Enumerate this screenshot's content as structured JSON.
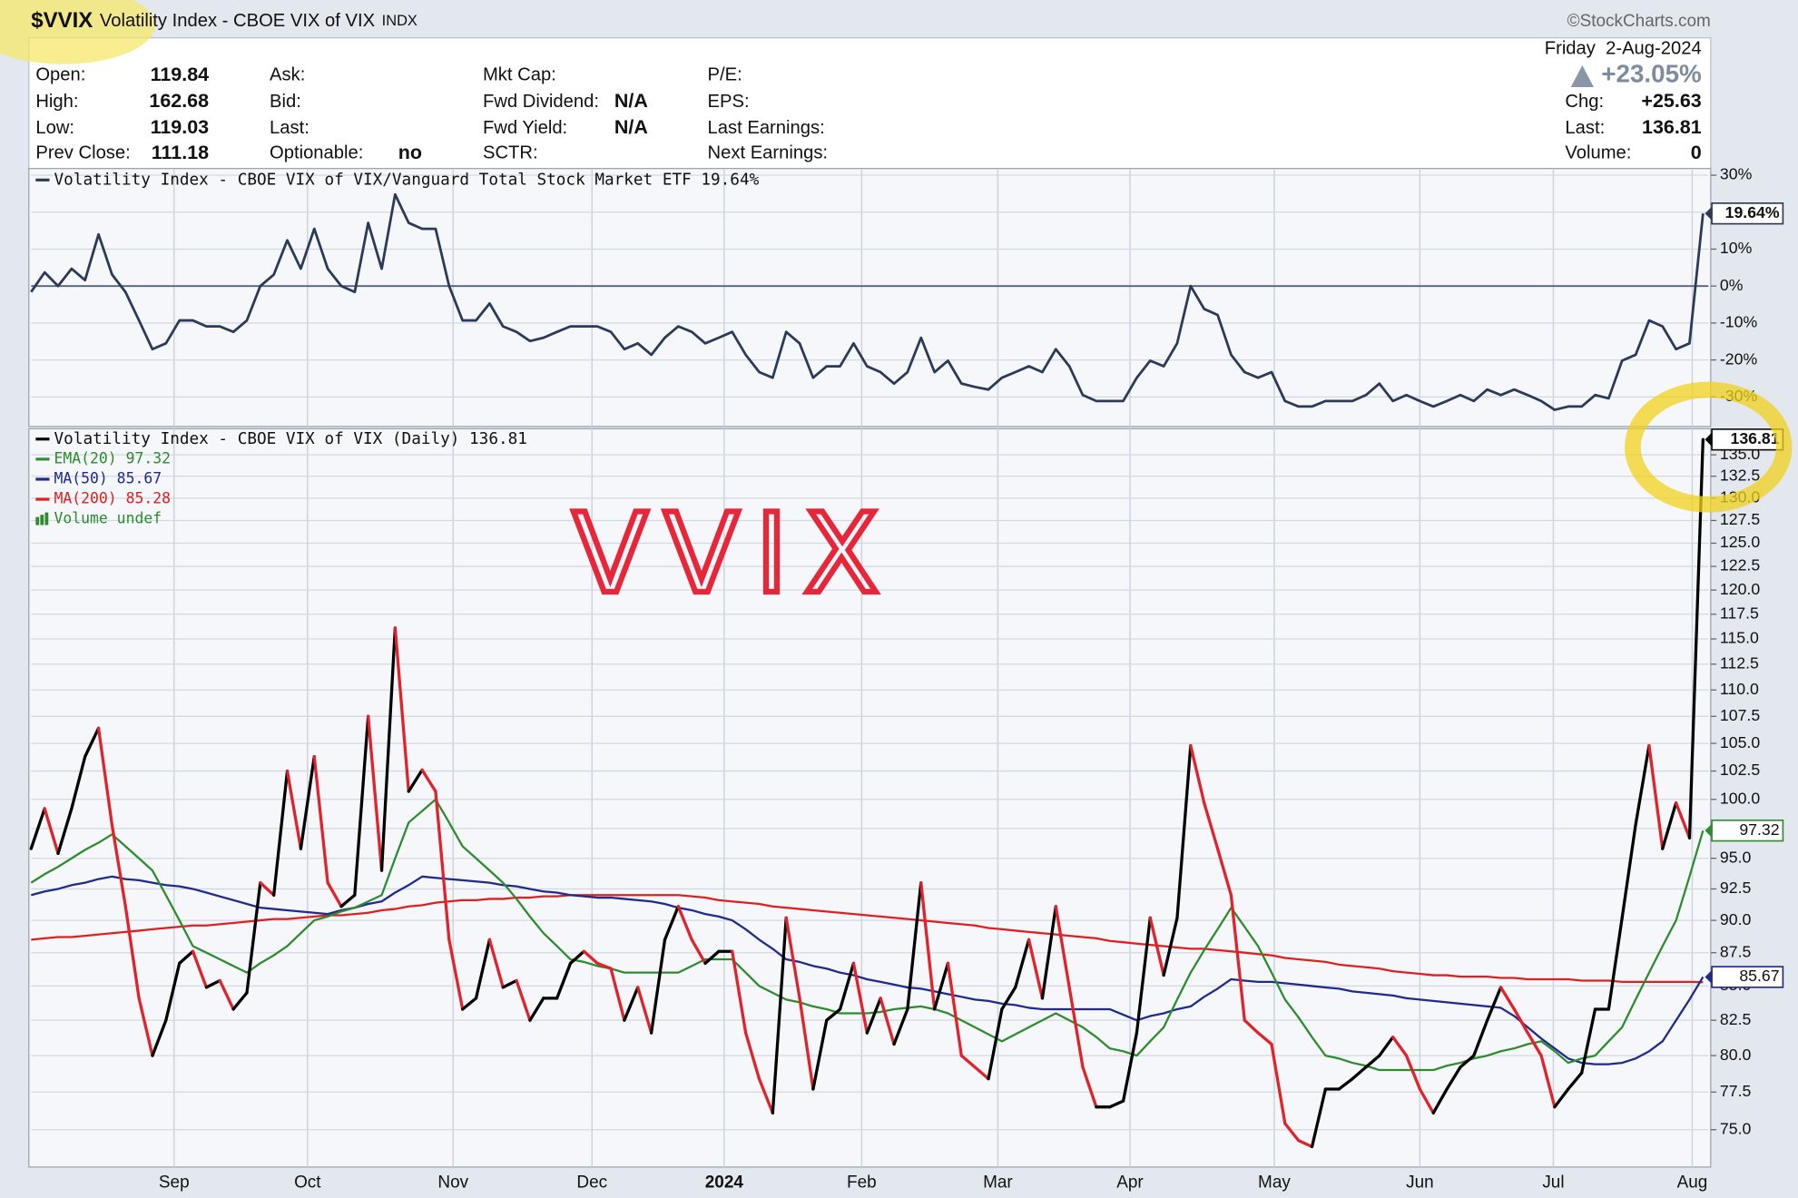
{
  "header": {
    "symbol": "$VVIX",
    "name": "Volatility Index - CBOE VIX of VIX",
    "exchange": "INDX",
    "source": "©StockCharts.com",
    "date": "Friday  2-Aug-2024",
    "change_pct": "+23.05%",
    "columns": [
      [
        {
          "label": "Open:",
          "value": 119.84
        },
        {
          "label": "High:",
          "value": 162.68
        },
        {
          "label": "Low:",
          "value": 119.03
        },
        {
          "label": "Prev Close:",
          "value": 111.18
        }
      ],
      [
        {
          "label": "Ask:"
        },
        {
          "label": "Bid:"
        },
        {
          "label": "Last:"
        },
        {
          "label": "Optionable:",
          "value": "no"
        }
      ],
      [
        {
          "label": "Mkt Cap:"
        },
        {
          "label": "Fwd Dividend:",
          "value": "N/A"
        },
        {
          "label": "Fwd Yield:",
          "value": "N/A"
        },
        {
          "label": "SCTR:"
        }
      ],
      [
        {
          "label": "P/E:"
        },
        {
          "label": "EPS:"
        },
        {
          "label": "Last Earnings:"
        },
        {
          "label": "Next Earnings:"
        }
      ]
    ],
    "right": [
      {
        "label": "Chg:",
        "value": "+25.63"
      },
      {
        "label": "Last:",
        "value": 136.81
      },
      {
        "label": "Volume:",
        "value": 0
      }
    ]
  },
  "chart_data": [
    {
      "type": "line",
      "xlim": [
        0,
        124.4
      ],
      "ylim": [
        -38,
        31.5
      ],
      "yticks": [
        {
          "value": 30,
          "label": "30%"
        },
        {
          "value": 20,
          "label": "20%"
        },
        {
          "value": 10,
          "label": "10%"
        },
        {
          "value": 0,
          "label": "0%"
        },
        {
          "value": -10,
          "label": "-10%"
        },
        {
          "value": -20,
          "label": "-20%"
        },
        {
          "value": -30,
          "label": "-30%"
        }
      ],
      "grid": true,
      "series": [
        {
          "name": "Volatility Index - CBOE VIX of VIX/Vanguard Total Stock Market ETF 19.64%",
          "color": "#2b3a58",
          "tag": true,
          "tag_label": "19.64%",
          "values": [
            -1.6,
            3.7,
            0,
            4.7,
            1.6,
            14.0,
            3.1,
            -1.6,
            -9.3,
            -17.1,
            -15.5,
            -9.3,
            -9.3,
            -10.9,
            -10.9,
            -12.4,
            -9.3,
            0,
            3.1,
            12.4,
            4.7,
            15.5,
            4.7,
            0,
            -1.6,
            17.1,
            4.7,
            24.8,
            17.1,
            15.5,
            15.5,
            0,
            -9.3,
            -9.3,
            -4.7,
            -10.9,
            -12.4,
            -14.9,
            -14.0,
            -12.4,
            -10.9,
            -10.9,
            -10.9,
            -12.4,
            -17.1,
            -15.5,
            -18.6,
            -14.0,
            -10.9,
            -12.4,
            -15.5,
            -14.0,
            -12.4,
            -18.6,
            -23.3,
            -24.8,
            -12.4,
            -15.5,
            -24.8,
            -21.7,
            -21.7,
            -15.5,
            -21.7,
            -23.3,
            -26.4,
            -23.3,
            -14.0,
            -23.3,
            -20.2,
            -26.4,
            -27.3,
            -28.0,
            -24.8,
            -23.3,
            -21.7,
            -23.3,
            -17.1,
            -21.7,
            -29.5,
            -31.1,
            -31.1,
            -31.1,
            -24.8,
            -20.2,
            -21.7,
            -15.5,
            0,
            -6.2,
            -7.8,
            -18.6,
            -23.3,
            -24.8,
            -23.3,
            -31.1,
            -32.6,
            -32.6,
            -31.1,
            -31.1,
            -31.1,
            -29.5,
            -26.4,
            -31.1,
            -29.5,
            -31.1,
            -32.6,
            -31.1,
            -29.5,
            -31.1,
            -28.0,
            -29.5,
            -28.0,
            -29.5,
            -31.1,
            -33.5,
            -32.6,
            -32.6,
            -29.5,
            -30.4,
            -20.2,
            -18.6,
            -9.3,
            -10.9,
            -17.1,
            -15.5,
            19.64
          ]
        }
      ]
    },
    {
      "type": "price",
      "annotation": "VVIX",
      "volume_legend": "Volume undef",
      "log_scale": true,
      "xlim": [
        0,
        124.4
      ],
      "xticks": [
        {
          "value": 10.6,
          "label": "Sep"
        },
        {
          "value": 20.5,
          "label": "Oct"
        },
        {
          "value": 31.3,
          "label": "Nov"
        },
        {
          "value": 41.6,
          "label": "Dec"
        },
        {
          "value": 51.4,
          "label": "2024"
        },
        {
          "value": 61.6,
          "label": "Feb"
        },
        {
          "value": 71.7,
          "label": "Mar"
        },
        {
          "value": 81.5,
          "label": "Apr"
        },
        {
          "value": 92.2,
          "label": "May"
        },
        {
          "value": 103.0,
          "label": "Jun"
        },
        {
          "value": 112.9,
          "label": "Jul"
        },
        {
          "value": 123.2,
          "label": "Aug"
        }
      ],
      "ylim": [
        72.6,
        138.1
      ],
      "yticks": [
        {
          "value": 75,
          "label": "75.0"
        },
        77.5,
        {
          "value": 80,
          "label": "80.0"
        },
        82.5,
        {
          "value": 85,
          "label": "85.0"
        },
        87.5,
        {
          "value": 90,
          "label": "90.0"
        },
        92.5,
        {
          "value": 95,
          "label": "95.0"
        },
        97.5,
        {
          "value": 100,
          "label": "100.0"
        },
        102.5,
        {
          "value": 105,
          "label": "105.0"
        },
        107.5,
        {
          "value": 110,
          "label": "110.0"
        },
        112.5,
        {
          "value": 115,
          "label": "115.0"
        },
        117.5,
        {
          "value": 120,
          "label": "120.0"
        },
        122.5,
        {
          "value": 125,
          "label": "125.0"
        },
        127.5,
        {
          "value": 130,
          "label": "130.0"
        },
        132.5,
        {
          "value": 135,
          "label": "135.0"
        }
      ],
      "grid": true,
      "series": [
        {
          "name": "Volatility Index - CBOE VIX of VIX (Daily) 136.81",
          "color": "#000000",
          "down_color": "#e2222b",
          "tag": true,
          "values": [
            95.8,
            99.2,
            95.4,
            99.2,
            103.8,
            106.4,
            97.8,
            91.1,
            84.1,
            80.0,
            82.5,
            86.7,
            87.6,
            84.9,
            85.4,
            83.3,
            84.5,
            93.0,
            92.0,
            102.5,
            95.8,
            103.8,
            93.0,
            91.1,
            92.0,
            107.5,
            94.0,
            116.1,
            100.7,
            102.6,
            100.7,
            88.5,
            83.3,
            84.1,
            88.5,
            84.9,
            85.4,
            82.5,
            84.1,
            84.1,
            86.7,
            87.6,
            86.7,
            86.3,
            82.5,
            84.9,
            81.6,
            88.5,
            91.1,
            88.5,
            86.7,
            87.6,
            87.6,
            81.6,
            78.4,
            76.1,
            90.2,
            84.1,
            77.7,
            82.5,
            83.3,
            86.7,
            81.6,
            84.1,
            80.8,
            83.3,
            93.0,
            83.3,
            86.7,
            80.0,
            79.2,
            78.4,
            83.3,
            84.9,
            88.5,
            84.1,
            91.1,
            84.9,
            79.2,
            76.5,
            76.5,
            76.9,
            81.6,
            90.2,
            85.8,
            90.2,
            104.8,
            99.7,
            95.8,
            92.0,
            82.5,
            81.6,
            80.8,
            75.4,
            74.3,
            73.9,
            77.7,
            77.7,
            78.4,
            79.2,
            80.0,
            81.3,
            80.0,
            77.7,
            76.1,
            77.7,
            79.2,
            80.0,
            82.5,
            84.9,
            83.3,
            81.6,
            80.0,
            76.5,
            77.7,
            78.8,
            83.3,
            83.3,
            90.2,
            97.8,
            104.8,
            95.8,
            99.7,
            96.7,
            136.81
          ]
        },
        {
          "name": "EMA(20) 97.32",
          "color": "#2e8b2e",
          "tag": true,
          "values": [
            93.0,
            93.7,
            94.3,
            95.0,
            95.7,
            96.3,
            97.0,
            96.0,
            95.0,
            94.0,
            92.0,
            90.0,
            88.0,
            87.5,
            87.0,
            86.5,
            86.0,
            86.7,
            87.3,
            88.0,
            89.0,
            90.0,
            90.3,
            90.7,
            91.0,
            91.5,
            92.0,
            95.0,
            98.0,
            99.0,
            100.0,
            98.0,
            96.0,
            95.0,
            94.0,
            93.0,
            91.7,
            90.3,
            89.0,
            88.0,
            87.0,
            86.8,
            86.5,
            86.3,
            86.0,
            86.0,
            86.0,
            86.0,
            86.0,
            86.5,
            87.0,
            87.0,
            87.0,
            86.0,
            85.0,
            84.5,
            84.0,
            83.8,
            83.5,
            83.3,
            83.0,
            83.0,
            83.0,
            83.1,
            83.3,
            83.4,
            83.5,
            83.3,
            83.0,
            82.5,
            82.0,
            81.5,
            81.0,
            81.5,
            82.0,
            82.5,
            83.0,
            82.5,
            82.0,
            81.3,
            80.5,
            80.3,
            80.0,
            81.0,
            82.0,
            84.0,
            86.0,
            87.7,
            89.3,
            91.0,
            89.5,
            88.0,
            86.0,
            84.0,
            82.7,
            81.3,
            80.0,
            79.8,
            79.5,
            79.3,
            79.0,
            79.0,
            79.0,
            79.0,
            79.0,
            79.3,
            79.5,
            79.8,
            80.0,
            80.3,
            80.5,
            80.8,
            81.0,
            80.3,
            79.5,
            79.8,
            80.0,
            81.0,
            82.0,
            84.0,
            86.0,
            88.0,
            90.0,
            93.5,
            97.32
          ]
        },
        {
          "name": "MA(50) 85.67",
          "color": "#1f2a8c",
          "tag": true,
          "values": [
            92.0,
            92.3,
            92.5,
            92.8,
            93.0,
            93.3,
            93.5,
            93.3,
            93.2,
            93.0,
            92.8,
            92.7,
            92.5,
            92.2,
            91.9,
            91.6,
            91.3,
            91.0,
            90.9,
            90.8,
            90.7,
            90.6,
            90.5,
            90.8,
            91.0,
            91.3,
            91.5,
            92.2,
            92.8,
            93.5,
            93.4,
            93.3,
            93.2,
            93.1,
            93.0,
            92.8,
            92.7,
            92.5,
            92.3,
            92.2,
            92.0,
            91.9,
            91.8,
            91.8,
            91.7,
            91.6,
            91.5,
            91.3,
            91.0,
            90.8,
            90.5,
            90.3,
            90.0,
            89.3,
            88.5,
            87.8,
            87.0,
            86.8,
            86.5,
            86.3,
            86.0,
            85.8,
            85.5,
            85.3,
            85.1,
            84.9,
            84.8,
            84.6,
            84.4,
            84.2,
            84.0,
            83.9,
            83.7,
            83.6,
            83.4,
            83.3,
            83.3,
            83.3,
            83.3,
            83.3,
            83.3,
            82.9,
            82.5,
            82.8,
            83.0,
            83.3,
            83.5,
            84.2,
            84.8,
            85.5,
            85.4,
            85.3,
            85.3,
            85.2,
            85.1,
            85.0,
            84.9,
            84.8,
            84.6,
            84.5,
            84.4,
            84.3,
            84.1,
            84.0,
            83.9,
            83.8,
            83.7,
            83.6,
            83.5,
            83.4,
            82.8,
            82.0,
            81.2,
            80.5,
            79.8,
            79.5,
            79.4,
            79.4,
            79.5,
            79.8,
            80.3,
            81.0,
            82.5,
            84.0,
            85.67
          ]
        },
        {
          "name": "MA(200) 85.28",
          "color": "#e02020",
          "tag": false,
          "values": [
            88.5,
            88.6,
            88.7,
            88.7,
            88.8,
            88.9,
            89.0,
            89.1,
            89.2,
            89.3,
            89.4,
            89.5,
            89.6,
            89.6,
            89.7,
            89.8,
            89.9,
            90.0,
            90.1,
            90.1,
            90.2,
            90.3,
            90.4,
            90.4,
            90.5,
            90.6,
            90.8,
            90.9,
            91.1,
            91.2,
            91.4,
            91.5,
            91.6,
            91.6,
            91.7,
            91.7,
            91.8,
            91.8,
            91.9,
            91.9,
            92.0,
            92.0,
            92.0,
            92.0,
            92.0,
            92.0,
            92.0,
            92.0,
            92.0,
            91.9,
            91.8,
            91.6,
            91.5,
            91.4,
            91.3,
            91.1,
            91.0,
            90.9,
            90.8,
            90.7,
            90.6,
            90.5,
            90.4,
            90.3,
            90.2,
            90.1,
            90.0,
            89.9,
            89.8,
            89.7,
            89.6,
            89.4,
            89.3,
            89.2,
            89.1,
            89.0,
            88.9,
            88.8,
            88.7,
            88.6,
            88.4,
            88.3,
            88.2,
            88.1,
            88.0,
            87.9,
            87.8,
            87.8,
            87.7,
            87.6,
            87.5,
            87.4,
            87.3,
            87.1,
            87.0,
            86.9,
            86.8,
            86.6,
            86.5,
            86.4,
            86.3,
            86.1,
            86.0,
            85.9,
            85.8,
            85.8,
            85.7,
            85.7,
            85.7,
            85.6,
            85.6,
            85.5,
            85.5,
            85.5,
            85.5,
            85.4,
            85.4,
            85.4,
            85.3,
            85.3,
            85.3,
            85.3,
            85.3,
            85.3,
            85.28
          ]
        }
      ]
    }
  ]
}
